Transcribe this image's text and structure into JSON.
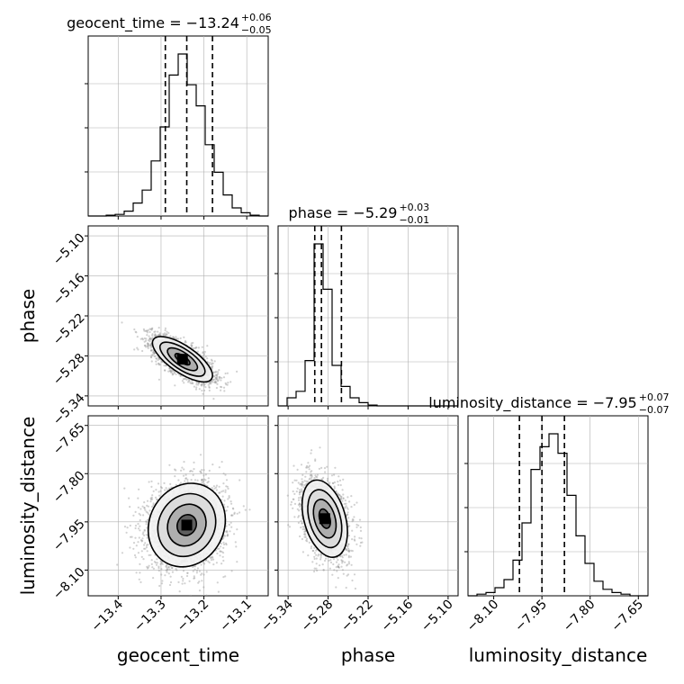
{
  "chart_data": {
    "type": "scatter",
    "variant": "corner-plot",
    "parameters": [
      "geocent_time",
      "phase",
      "luminosity_distance"
    ],
    "axis_labels": [
      "geocent_time",
      "phase",
      "luminosity_distance"
    ],
    "titles": [
      {
        "prefix": "geocent_time = ",
        "median": "−13.24",
        "plus": "+0.06",
        "minus": "−0.05"
      },
      {
        "prefix": "phase = ",
        "median": "−5.29",
        "plus": "+0.03",
        "minus": "−0.01"
      },
      {
        "prefix": "luminosity_distance = ",
        "median": "−7.95",
        "plus": "+0.07",
        "minus": "−0.07"
      }
    ],
    "ranges": [
      [
        -13.47,
        -13.05
      ],
      [
        -5.355,
        -5.085
      ],
      [
        -8.18,
        -7.62
      ]
    ],
    "ticks": [
      {
        "values": [
          -13.4,
          -13.3,
          -13.2,
          -13.1
        ],
        "labels": [
          "−13.4",
          "−13.3",
          "−13.2",
          "−13.1"
        ]
      },
      {
        "values": [
          -5.34,
          -5.28,
          -5.22,
          -5.16,
          -5.1
        ],
        "labels": [
          "−5.34",
          "−5.28",
          "−5.22",
          "−5.16",
          "−5.10"
        ]
      },
      {
        "values": [
          -8.1,
          -7.95,
          -7.8,
          -7.65
        ],
        "labels": [
          "−8.10",
          "−7.95",
          "−7.80",
          "−7.65"
        ]
      }
    ],
    "quantiles": [
      [
        -13.29,
        -13.24,
        -13.18
      ],
      [
        -5.3,
        -5.29,
        -5.26
      ],
      [
        -8.02,
        -7.95,
        -7.88
      ]
    ],
    "histograms": [
      {
        "bin_edges": [
          -13.47,
          -13.449,
          -13.428,
          -13.407,
          -13.386,
          -13.365,
          -13.344,
          -13.323,
          -13.302,
          -13.281,
          -13.26,
          -13.239,
          -13.218,
          -13.197,
          -13.176,
          -13.155,
          -13.134,
          -13.113,
          -13.092,
          -13.071,
          -13.05
        ],
        "relative_heights": [
          0.0,
          0.0,
          0.005,
          0.01,
          0.03,
          0.08,
          0.16,
          0.34,
          0.55,
          0.87,
          1.0,
          0.81,
          0.68,
          0.44,
          0.27,
          0.13,
          0.05,
          0.02,
          0.005,
          0.0
        ]
      },
      {
        "bin_edges": [
          -5.355,
          -5.3415,
          -5.328,
          -5.3145,
          -5.301,
          -5.2875,
          -5.274,
          -5.2605,
          -5.247,
          -5.2335,
          -5.22,
          -5.2065,
          -5.193,
          -5.1795,
          -5.166,
          -5.1525,
          -5.139,
          -5.1255,
          -5.112,
          -5.0985,
          -5.085
        ],
        "relative_heights": [
          0.0,
          0.05,
          0.09,
          0.28,
          1.0,
          0.72,
          0.25,
          0.12,
          0.05,
          0.02,
          0.005,
          0.0,
          0.0,
          0.0,
          0.0,
          0.0,
          0.0,
          0.0,
          0.0,
          0.0
        ]
      },
      {
        "bin_edges": [
          -8.18,
          -8.152,
          -8.124,
          -8.096,
          -8.068,
          -8.04,
          -8.012,
          -7.984,
          -7.956,
          -7.928,
          -7.9,
          -7.872,
          -7.844,
          -7.816,
          -7.788,
          -7.76,
          -7.732,
          -7.704,
          -7.676,
          -7.648,
          -7.62
        ],
        "relative_heights": [
          0.0,
          0.01,
          0.02,
          0.05,
          0.1,
          0.22,
          0.45,
          0.78,
          0.92,
          1.0,
          0.88,
          0.62,
          0.37,
          0.2,
          0.09,
          0.04,
          0.02,
          0.01,
          0.0,
          0.0
        ]
      }
    ],
    "pairs": [
      {
        "x_index": 0,
        "y_index": 1,
        "center": [
          -13.25,
          -5.285
        ],
        "sigma": [
          0.035,
          0.017
        ],
        "correlation": -0.72
      },
      {
        "x_index": 0,
        "y_index": 2,
        "center": [
          -13.24,
          -7.96
        ],
        "sigma": [
          0.045,
          0.065
        ],
        "correlation": 0.12
      },
      {
        "x_index": 1,
        "y_index": 2,
        "center": [
          -5.285,
          -7.94
        ],
        "sigma": [
          0.017,
          0.06
        ],
        "correlation": -0.35
      }
    ],
    "grid": true,
    "colors": {
      "line": "#000000",
      "samples": "#9a9a9a",
      "grid": "#b0b0b0"
    }
  }
}
